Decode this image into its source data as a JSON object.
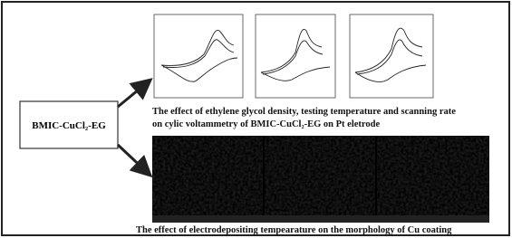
{
  "box": {
    "label": "BMIC-CuCl₂-EG"
  },
  "captions": {
    "cv_line1": "The effect of ethylene glycol density, testing temperature and scanning rate",
    "cv_line2": "on cylic voltammetry of BMIC-CuCl₂-EG on Pt eletrode",
    "sem": "The effect of electrodepositing tempearature on the morphology of Cu coating"
  }
}
